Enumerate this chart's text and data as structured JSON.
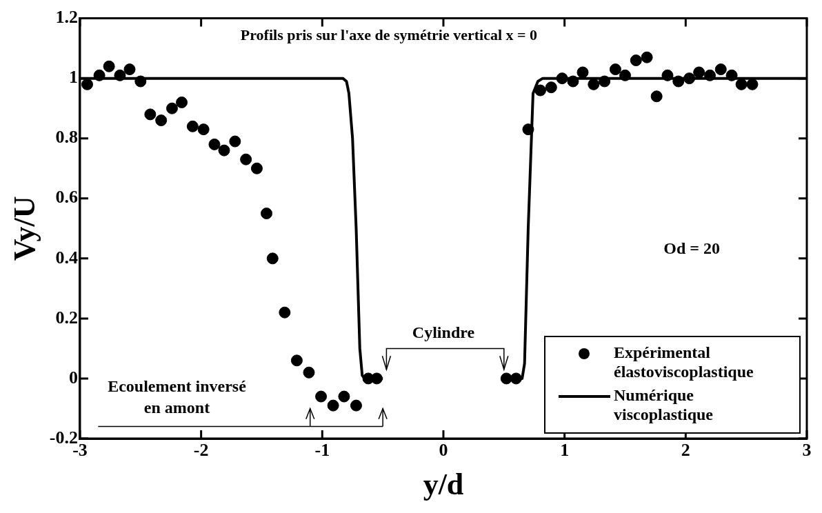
{
  "chart_data": {
    "type": "scatter",
    "title": "Profils pris sur l'axe de symétrie vertical x = 0",
    "xlabel": "y/d",
    "ylabel": "Vy/U",
    "xlim": [
      -3,
      3
    ],
    "xticks": [
      -3,
      -2,
      -1,
      0,
      1,
      2,
      3
    ],
    "ylim": [
      -0.2,
      1.2
    ],
    "yticks": [
      -0.2,
      0,
      0.2,
      0.4,
      0.6,
      0.8,
      1,
      1.2
    ],
    "grid": false,
    "legend": "bottom right",
    "annotations": [
      "Od = 20",
      "Cylindre",
      "Ecoulement inversé en amont"
    ],
    "series": [
      {
        "name": "Expérimental élastoviscoplastique",
        "type": "scatter",
        "marker": "circle",
        "color": "#000000",
        "x": [
          -2.94,
          -2.84,
          -2.76,
          -2.67,
          -2.59,
          -2.5,
          -2.42,
          -2.33,
          -2.24,
          -2.16,
          -2.07,
          -1.98,
          -1.89,
          -1.81,
          -1.72,
          -1.63,
          -1.54,
          -1.46,
          -1.41,
          -1.31,
          -1.21,
          -1.11,
          -1.01,
          -0.91,
          -0.82,
          -0.72,
          -0.62,
          -0.55,
          0.52,
          0.6,
          0.7,
          0.8,
          0.89,
          0.98,
          1.07,
          1.15,
          1.24,
          1.33,
          1.42,
          1.5,
          1.59,
          1.68,
          1.76,
          1.85,
          1.94,
          2.03,
          2.11,
          2.2,
          2.29,
          2.38,
          2.46,
          2.55
        ],
        "values": [
          0.98,
          1.01,
          1.04,
          1.01,
          1.03,
          0.99,
          0.88,
          0.86,
          0.9,
          0.92,
          0.84,
          0.83,
          0.78,
          0.76,
          0.79,
          0.73,
          0.7,
          0.55,
          0.4,
          0.22,
          0.06,
          0.02,
          -0.06,
          -0.09,
          -0.06,
          -0.09,
          0,
          0,
          0,
          0,
          0.83,
          0.96,
          0.97,
          1,
          0.99,
          1.02,
          0.98,
          0.99,
          1.03,
          1.01,
          1.06,
          1.07,
          0.94,
          1.01,
          0.99,
          1,
          1.02,
          1.01,
          1.03,
          1.01,
          0.98,
          0.98
        ]
      },
      {
        "name": "Numérique viscoplastique",
        "type": "line",
        "color": "#000000",
        "line_style": "solid",
        "x": [
          -3,
          -0.83,
          -0.8,
          -0.78,
          -0.75,
          -0.72,
          -0.69,
          -0.67,
          -0.65,
          -0.5,
          null,
          0.53,
          0.65,
          0.67,
          0.7,
          0.74,
          0.78,
          0.82,
          3
        ],
        "values": [
          1,
          1,
          0.99,
          0.95,
          0.8,
          0.5,
          0.1,
          0.01,
          0,
          0,
          null,
          0,
          0,
          0.05,
          0.5,
          0.95,
          0.99,
          1,
          1
        ]
      }
    ]
  }
}
